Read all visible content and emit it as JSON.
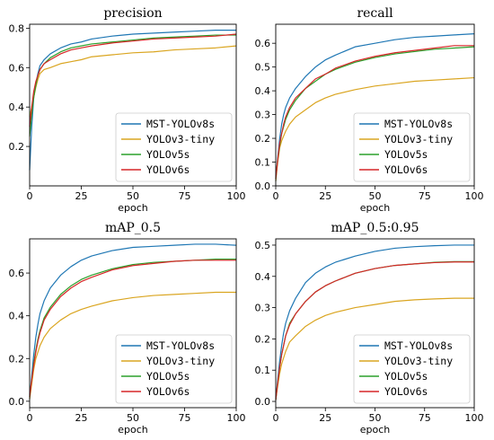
{
  "colors": {
    "MST-YOLOv8s": "#1f77b4",
    "YOLOv3-tiny": "#daa520",
    "YOLOv5s": "#2ca02c",
    "YOLOv6s": "#d62728"
  },
  "chart_data": [
    {
      "type": "line",
      "title": "precision",
      "xlabel": "epoch",
      "ylabel": "",
      "xlim": [
        0,
        100
      ],
      "ylim": [
        0.0,
        0.82
      ],
      "xticks": [
        0,
        25,
        50,
        75,
        100
      ],
      "yticks": [
        0.2,
        0.4,
        0.6,
        0.8
      ],
      "legend": "lower-right",
      "grid": false,
      "x": [
        0,
        1,
        2,
        3,
        4,
        5,
        7,
        10,
        15,
        20,
        25,
        30,
        40,
        50,
        60,
        70,
        80,
        90,
        100
      ],
      "series": [
        {
          "name": "MST-YOLOv8s",
          "values": [
            0.08,
            0.3,
            0.45,
            0.52,
            0.57,
            0.61,
            0.64,
            0.67,
            0.7,
            0.72,
            0.73,
            0.745,
            0.76,
            0.77,
            0.775,
            0.78,
            0.785,
            0.79,
            0.79
          ]
        },
        {
          "name": "YOLOv3-tiny",
          "values": [
            0.35,
            0.4,
            0.45,
            0.5,
            0.54,
            0.57,
            0.59,
            0.6,
            0.62,
            0.63,
            0.64,
            0.655,
            0.665,
            0.675,
            0.68,
            0.69,
            0.695,
            0.7,
            0.71
          ]
        },
        {
          "name": "YOLOv5s",
          "values": [
            0.25,
            0.36,
            0.45,
            0.51,
            0.56,
            0.59,
            0.62,
            0.65,
            0.68,
            0.7,
            0.71,
            0.72,
            0.73,
            0.74,
            0.75,
            0.755,
            0.76,
            0.765,
            0.765
          ]
        },
        {
          "name": "YOLOv6s",
          "values": [
            0.3,
            0.4,
            0.48,
            0.53,
            0.56,
            0.59,
            0.62,
            0.64,
            0.67,
            0.69,
            0.7,
            0.71,
            0.725,
            0.735,
            0.745,
            0.75,
            0.755,
            0.76,
            0.77
          ]
        }
      ]
    },
    {
      "type": "line",
      "title": "recall",
      "xlabel": "epoch",
      "ylabel": "",
      "xlim": [
        0,
        100
      ],
      "ylim": [
        0.0,
        0.68
      ],
      "xticks": [
        0,
        25,
        50,
        75,
        100
      ],
      "yticks": [
        0.0,
        0.1,
        0.2,
        0.3,
        0.4,
        0.5,
        0.6
      ],
      "legend": "lower-right",
      "grid": false,
      "x": [
        0,
        1,
        2,
        3,
        4,
        5,
        7,
        10,
        15,
        20,
        25,
        30,
        40,
        50,
        60,
        70,
        80,
        90,
        100
      ],
      "series": [
        {
          "name": "MST-YOLOv8s",
          "values": [
            0.02,
            0.12,
            0.2,
            0.26,
            0.3,
            0.33,
            0.37,
            0.41,
            0.46,
            0.5,
            0.53,
            0.55,
            0.585,
            0.6,
            0.615,
            0.625,
            0.63,
            0.635,
            0.64
          ]
        },
        {
          "name": "YOLOv3-tiny",
          "values": [
            0.02,
            0.1,
            0.16,
            0.19,
            0.21,
            0.23,
            0.26,
            0.29,
            0.32,
            0.35,
            0.37,
            0.385,
            0.405,
            0.42,
            0.43,
            0.44,
            0.445,
            0.45,
            0.455
          ]
        },
        {
          "name": "YOLOv5s",
          "values": [
            0.03,
            0.11,
            0.17,
            0.22,
            0.25,
            0.28,
            0.32,
            0.36,
            0.41,
            0.44,
            0.47,
            0.49,
            0.52,
            0.54,
            0.555,
            0.565,
            0.575,
            0.58,
            0.585
          ]
        },
        {
          "name": "YOLOv6s",
          "values": [
            0.03,
            0.11,
            0.18,
            0.22,
            0.26,
            0.29,
            0.33,
            0.37,
            0.41,
            0.45,
            0.47,
            0.495,
            0.525,
            0.545,
            0.56,
            0.57,
            0.58,
            0.59,
            0.59
          ]
        }
      ]
    },
    {
      "type": "line",
      "title": "mAP_0.5",
      "xlabel": "epoch",
      "ylabel": "",
      "xlim": [
        0,
        100
      ],
      "ylim": [
        -0.03,
        0.76
      ],
      "xticks": [
        0,
        25,
        50,
        75,
        100
      ],
      "yticks": [
        0.0,
        0.2,
        0.4,
        0.6
      ],
      "legend": "lower-right",
      "grid": false,
      "x": [
        0,
        1,
        2,
        3,
        4,
        5,
        7,
        10,
        15,
        20,
        25,
        30,
        40,
        50,
        60,
        70,
        80,
        90,
        100
      ],
      "series": [
        {
          "name": "MST-YOLOv8s",
          "values": [
            0.01,
            0.12,
            0.22,
            0.3,
            0.36,
            0.41,
            0.47,
            0.53,
            0.59,
            0.63,
            0.66,
            0.68,
            0.705,
            0.72,
            0.725,
            0.73,
            0.735,
            0.735,
            0.73
          ]
        },
        {
          "name": "YOLOv3-tiny",
          "values": [
            0.01,
            0.08,
            0.15,
            0.2,
            0.23,
            0.26,
            0.3,
            0.34,
            0.38,
            0.41,
            0.43,
            0.445,
            0.47,
            0.485,
            0.495,
            0.5,
            0.505,
            0.51,
            0.51
          ]
        },
        {
          "name": "YOLOv5s",
          "values": [
            0.02,
            0.1,
            0.18,
            0.24,
            0.29,
            0.33,
            0.39,
            0.44,
            0.5,
            0.54,
            0.57,
            0.59,
            0.62,
            0.64,
            0.65,
            0.655,
            0.66,
            0.665,
            0.665
          ]
        },
        {
          "name": "YOLOv6s",
          "values": [
            0.02,
            0.1,
            0.17,
            0.23,
            0.28,
            0.32,
            0.38,
            0.43,
            0.49,
            0.53,
            0.56,
            0.58,
            0.615,
            0.635,
            0.645,
            0.655,
            0.66,
            0.66,
            0.66
          ]
        }
      ]
    },
    {
      "type": "line",
      "title": "mAP_0.5:0.95",
      "xlabel": "epoch",
      "ylabel": "",
      "xlim": [
        0,
        100
      ],
      "ylim": [
        -0.02,
        0.52
      ],
      "xticks": [
        0,
        25,
        50,
        75,
        100
      ],
      "yticks": [
        0.0,
        0.1,
        0.2,
        0.3,
        0.4,
        0.5
      ],
      "legend": "lower-right",
      "grid": false,
      "x": [
        0,
        1,
        2,
        3,
        4,
        5,
        7,
        10,
        15,
        20,
        25,
        30,
        40,
        50,
        60,
        70,
        80,
        90,
        100
      ],
      "series": [
        {
          "name": "MST-YOLOv8s",
          "values": [
            0.005,
            0.07,
            0.13,
            0.18,
            0.22,
            0.25,
            0.29,
            0.33,
            0.38,
            0.41,
            0.43,
            0.445,
            0.465,
            0.48,
            0.49,
            0.495,
            0.498,
            0.5,
            0.5
          ]
        },
        {
          "name": "YOLOv3-tiny",
          "values": [
            0.005,
            0.05,
            0.09,
            0.12,
            0.14,
            0.16,
            0.19,
            0.21,
            0.24,
            0.26,
            0.275,
            0.285,
            0.3,
            0.31,
            0.32,
            0.325,
            0.328,
            0.33,
            0.33
          ]
        },
        {
          "name": "YOLOv5s",
          "values": [
            0.005,
            0.06,
            0.11,
            0.15,
            0.18,
            0.21,
            0.25,
            0.28,
            0.32,
            0.35,
            0.37,
            0.385,
            0.41,
            0.425,
            0.435,
            0.44,
            0.445,
            0.447,
            0.447
          ]
        },
        {
          "name": "YOLOv6s",
          "values": [
            0.005,
            0.06,
            0.11,
            0.15,
            0.18,
            0.21,
            0.245,
            0.28,
            0.32,
            0.35,
            0.37,
            0.385,
            0.41,
            0.425,
            0.435,
            0.44,
            0.444,
            0.446,
            0.446
          ]
        }
      ]
    }
  ]
}
